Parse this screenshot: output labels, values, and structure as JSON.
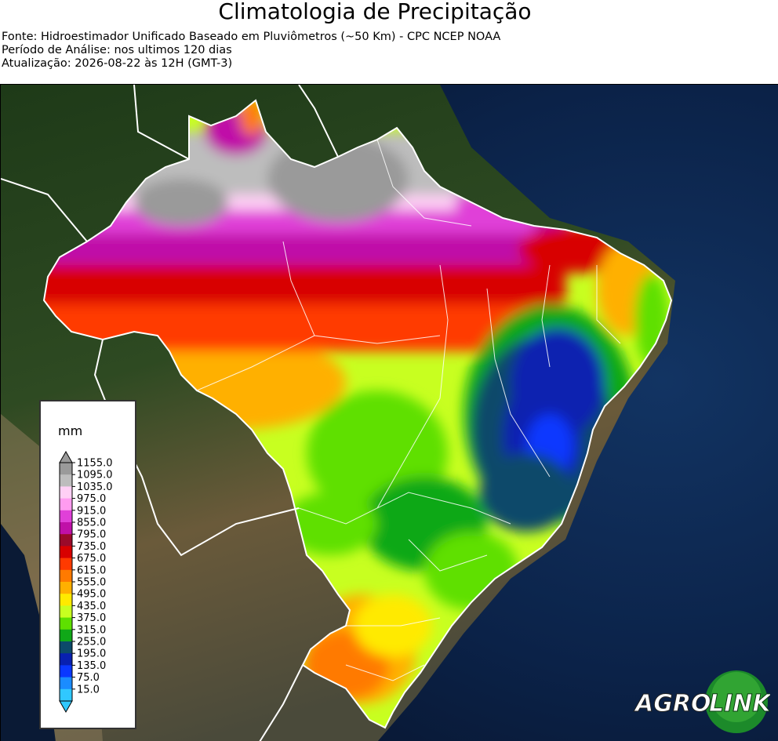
{
  "header": {
    "title": "Climatologia de Precipitação",
    "source": "Fonte: Hidroestimador Unificado Baseado em Pluviômetros (~50 Km) - CPC NCEP NOAA",
    "period": "Período de Análise: nos ultimos 120 dias",
    "updated": "Atualização: 2026-08-22 às 12H (GMT-3)"
  },
  "legend": {
    "unit": "mm",
    "levels": [
      "1155.0",
      "1095.0",
      "1035.0",
      "975.0",
      "915.0",
      "855.0",
      "795.0",
      "735.0",
      "675.0",
      "615.0",
      "555.0",
      "495.0",
      "435.0",
      "375.0",
      "315.0",
      "255.0",
      "195.0",
      "135.0",
      "75.0",
      "15.0"
    ],
    "colors": [
      "#9a9a9a",
      "#bdbdbd",
      "#ffd0f5",
      "#ff9cf0",
      "#e040d8",
      "#c010a8",
      "#9a0a2a",
      "#d80000",
      "#ff3a00",
      "#ff7a00",
      "#ffb000",
      "#ffea00",
      "#c8ff20",
      "#5ee000",
      "#10a818",
      "#0c4a6a",
      "#0820b0",
      "#0a38ff",
      "#1a8cff",
      "#30c8ff"
    ]
  },
  "logo": {
    "left": "AGRO",
    "right": "LINK"
  },
  "colors": {
    "ocean": "#0b1a33",
    "land": "#3a4a2a",
    "border": "#ffffff"
  }
}
